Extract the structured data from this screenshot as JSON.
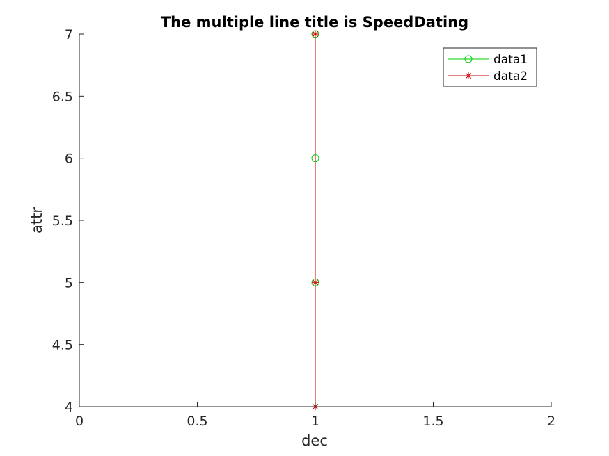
{
  "chart_data": {
    "type": "line",
    "title": "The multiple line title is SpeedDating",
    "xlabel": "dec",
    "ylabel": "attr",
    "xlim": [
      0,
      2
    ],
    "ylim": [
      4,
      7
    ],
    "xticks": [
      0,
      0.5,
      1,
      1.5,
      2
    ],
    "xtick_labels": [
      "0",
      "0.5",
      "1",
      "1.5",
      "2"
    ],
    "yticks": [
      4,
      4.5,
      5,
      5.5,
      6,
      6.5,
      7
    ],
    "ytick_labels": [
      "4",
      "4.5",
      "5",
      "5.5",
      "6",
      "6.5",
      "7"
    ],
    "grid": false,
    "legend_position": "top-right",
    "series": [
      {
        "name": "data1",
        "color": "#00cc00",
        "marker": "circle",
        "x": [
          1,
          1,
          1
        ],
        "y": [
          7,
          6,
          5
        ]
      },
      {
        "name": "data2",
        "color": "#cc0000",
        "marker": "asterisk",
        "x": [
          1,
          1,
          1
        ],
        "y": [
          7,
          5,
          4
        ]
      }
    ]
  }
}
